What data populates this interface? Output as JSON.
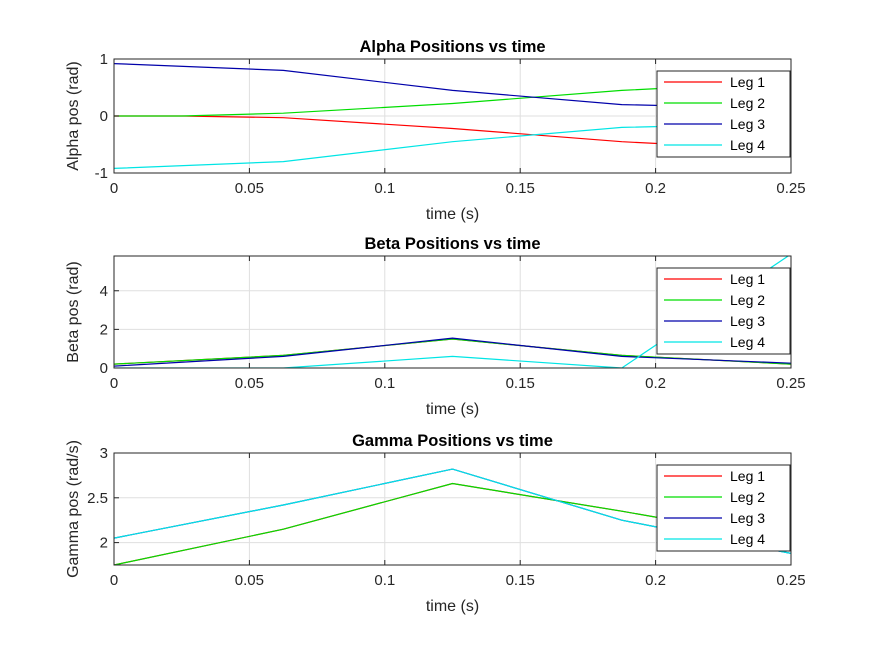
{
  "chart_data": [
    {
      "type": "line",
      "title": "Alpha Positions vs time",
      "xlabel": "time (s)",
      "ylabel": "Alpha pos (rad)",
      "xlim": [
        0,
        0.25
      ],
      "ylim": [
        -1,
        1
      ],
      "xticks": [
        0,
        0.05,
        0.1,
        0.15,
        0.2,
        0.25
      ],
      "xtick_labels": [
        "0",
        "0.05",
        "0.1",
        "0.15",
        "0.2",
        "0.25"
      ],
      "yticks": [
        -1,
        0,
        1
      ],
      "ytick_labels": [
        "-1",
        "0",
        "1"
      ],
      "grid": true,
      "legend_position": "top-right",
      "series": [
        {
          "name": "Leg 1",
          "color": "#ff0000",
          "x": [
            0,
            0.025,
            0.0625,
            0.125,
            0.1875,
            0.25
          ],
          "y": [
            0,
            0,
            -0.03,
            -0.22,
            -0.45,
            -0.6
          ]
        },
        {
          "name": "Leg 2",
          "color": "#00dd00",
          "x": [
            0,
            0.025,
            0.0625,
            0.125,
            0.1875,
            0.25
          ],
          "y": [
            0,
            0,
            0.05,
            0.22,
            0.45,
            0.6
          ]
        },
        {
          "name": "Leg 3",
          "color": "#0000aa",
          "x": [
            0,
            0.0625,
            0.125,
            0.1875,
            0.25
          ],
          "y": [
            0.92,
            0.8,
            0.45,
            0.2,
            0.13
          ]
        },
        {
          "name": "Leg 4",
          "color": "#00e5e5",
          "x": [
            0,
            0.0625,
            0.125,
            0.1875,
            0.25
          ],
          "y": [
            -0.92,
            -0.8,
            -0.45,
            -0.2,
            -0.13
          ]
        }
      ]
    },
    {
      "type": "line",
      "title": "Beta Positions vs time",
      "xlabel": "time (s)",
      "ylabel": "Beta pos (rad)",
      "xlim": [
        0,
        0.25
      ],
      "ylim": [
        0,
        5.8
      ],
      "xticks": [
        0,
        0.05,
        0.1,
        0.15,
        0.2,
        0.25
      ],
      "xtick_labels": [
        "0",
        "0.05",
        "0.1",
        "0.15",
        "0.2",
        "0.25"
      ],
      "yticks": [
        0,
        2,
        4
      ],
      "ytick_labels": [
        "0",
        "2",
        "4"
      ],
      "grid": true,
      "legend_position": "top-right",
      "series": [
        {
          "name": "Leg 1",
          "color": "#ff0000",
          "x": [
            0,
            0.0625,
            0.125,
            0.1875,
            0.25
          ],
          "y": [
            0.2,
            0.65,
            1.5,
            0.65,
            0.2
          ]
        },
        {
          "name": "Leg 2",
          "color": "#00dd00",
          "x": [
            0,
            0.0625,
            0.125,
            0.1875,
            0.25
          ],
          "y": [
            0.2,
            0.65,
            1.5,
            0.65,
            0.2
          ]
        },
        {
          "name": "Leg 3",
          "color": "#0000aa",
          "x": [
            0,
            0.0625,
            0.125,
            0.1875,
            0.25
          ],
          "y": [
            0.1,
            0.6,
            1.55,
            0.6,
            0.25
          ]
        },
        {
          "name": "Leg 4",
          "color": "#00e5e5",
          "x": [
            0,
            0.0625,
            0.125,
            0.1875,
            0.25
          ],
          "y": [
            0,
            0,
            0.6,
            0,
            5.9
          ]
        }
      ]
    },
    {
      "type": "line",
      "title": "Gamma Positions vs time",
      "xlabel": "time (s)",
      "ylabel": "Gamma pos (rad/s)",
      "xlim": [
        0,
        0.25
      ],
      "ylim": [
        1.75,
        3
      ],
      "xticks": [
        0,
        0.05,
        0.1,
        0.15,
        0.2,
        0.25
      ],
      "xtick_labels": [
        "0",
        "0.05",
        "0.1",
        "0.15",
        "0.2",
        "0.25"
      ],
      "yticks": [
        2,
        2.5,
        3
      ],
      "ytick_labels": [
        "2",
        "2.5",
        "3"
      ],
      "grid": true,
      "legend_position": "top-right",
      "series": [
        {
          "name": "Leg 1",
          "color": "#ff0000",
          "x": [
            0,
            0.0625,
            0.125,
            0.1875,
            0.25
          ],
          "y": [
            1.75,
            2.15,
            2.66,
            2.35,
            2.02
          ]
        },
        {
          "name": "Leg 2",
          "color": "#00dd00",
          "x": [
            0,
            0.0625,
            0.125,
            0.1875,
            0.25
          ],
          "y": [
            1.75,
            2.15,
            2.66,
            2.35,
            2.02
          ]
        },
        {
          "name": "Leg 3",
          "color": "#0000aa",
          "x": [
            0,
            0.0625,
            0.125,
            0.1875,
            0.25
          ],
          "y": [
            2.05,
            2.42,
            2.82,
            2.25,
            1.88
          ]
        },
        {
          "name": "Leg 4",
          "color": "#00e5e5",
          "x": [
            0,
            0.0625,
            0.125,
            0.1875,
            0.25
          ],
          "y": [
            2.05,
            2.42,
            2.82,
            2.25,
            1.88
          ]
        }
      ]
    }
  ]
}
